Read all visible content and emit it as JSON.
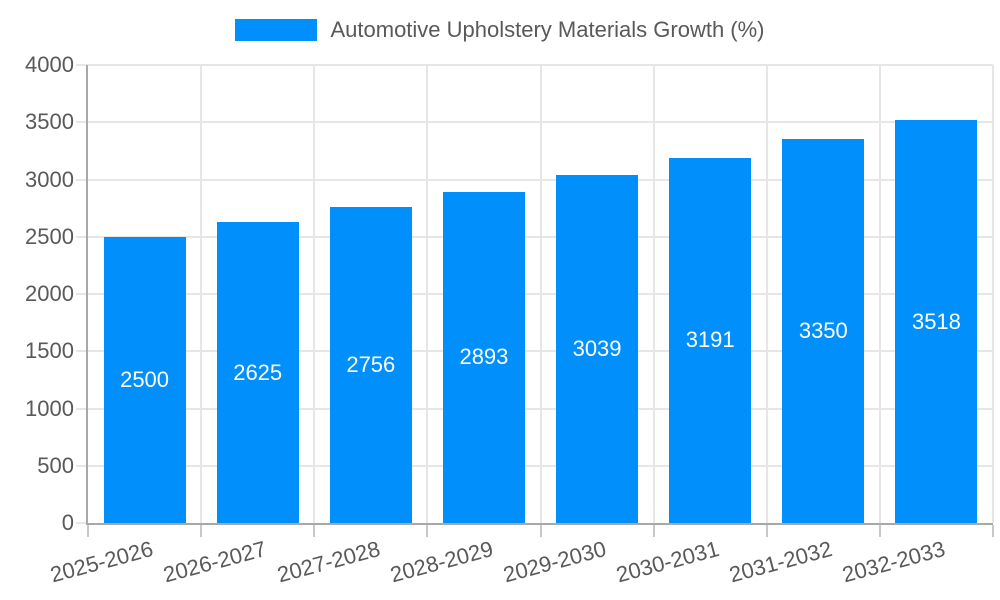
{
  "legend": {
    "label": "Automotive Upholstery Materials Growth (%)",
    "swatch_color": "#008FFB",
    "position": "top"
  },
  "chart_data": {
    "type": "bar",
    "title": "",
    "categories": [
      "2025-2026",
      "2026-2027",
      "2027-2028",
      "2028-2029",
      "2029-2030",
      "2030-2031",
      "2031-2032",
      "2032-2033"
    ],
    "series": [
      {
        "name": "Automotive Upholstery Materials Growth (%)",
        "values": [
          2500,
          2625,
          2756,
          2893,
          3039,
          3191,
          3350,
          3518
        ],
        "color": "#008FFB"
      }
    ],
    "value_labels": [
      2500,
      2625,
      2756,
      2893,
      3039,
      3191,
      3350,
      3518
    ],
    "value_label_position": "inside-center",
    "xlabel": "",
    "ylabel": "",
    "ylim": [
      0,
      4000
    ],
    "yticks": [
      0,
      500,
      1000,
      1500,
      2000,
      2500,
      3000,
      3500,
      4000
    ],
    "grid": true,
    "x_label_rotation_deg": -15,
    "legend_position": "top",
    "colors": {
      "bar": "#008FFB",
      "value_label": "#ffffff",
      "axis_label": "#595959",
      "grid": "#e6e6e6",
      "axis_line": "#a8a8a8",
      "tick": "#c9c9c9",
      "background": "#ffffff"
    }
  }
}
